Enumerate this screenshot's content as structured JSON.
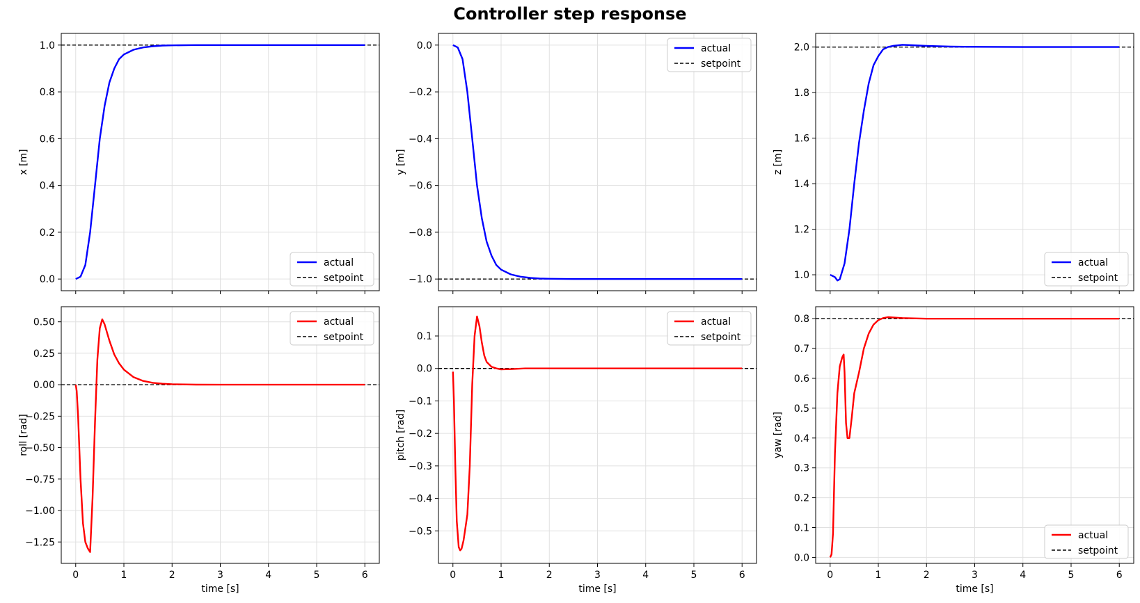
{
  "figure": {
    "title": "Controller step response"
  },
  "colors": {
    "translation": "#0000ff",
    "rotation": "#ff0000",
    "setpoint": "#000000",
    "grid": "#e0e0e0"
  },
  "chart_data": [
    {
      "type": "line",
      "id": "x",
      "xlabel": "",
      "ylabel": "x [m]",
      "xlim": [
        -0.3,
        6.3
      ],
      "ylim": [
        -0.05,
        1.05
      ],
      "xticks": [
        0,
        1,
        2,
        3,
        4,
        5,
        6
      ],
      "yticks": [
        0.0,
        0.2,
        0.4,
        0.6,
        0.8,
        1.0
      ],
      "ytick_decimals": 1,
      "show_xtick_labels": false,
      "grid": true,
      "legend": "lower-right",
      "setpoint": 1.0,
      "series": [
        {
          "name": "actual",
          "x": [
            0,
            0.1,
            0.2,
            0.3,
            0.4,
            0.5,
            0.6,
            0.7,
            0.8,
            0.9,
            1.0,
            1.2,
            1.4,
            1.6,
            1.8,
            2.0,
            2.5,
            3,
            4,
            5,
            6
          ],
          "y": [
            0,
            0.01,
            0.06,
            0.2,
            0.4,
            0.6,
            0.74,
            0.84,
            0.9,
            0.94,
            0.96,
            0.98,
            0.99,
            0.995,
            0.998,
            0.999,
            1,
            1,
            1,
            1,
            1
          ]
        }
      ]
    },
    {
      "type": "line",
      "id": "y",
      "xlabel": "",
      "ylabel": "y [m]",
      "xlim": [
        -0.3,
        6.3
      ],
      "ylim": [
        -1.05,
        0.05
      ],
      "xticks": [
        0,
        1,
        2,
        3,
        4,
        5,
        6
      ],
      "yticks": [
        -1.0,
        -0.8,
        -0.6,
        -0.4,
        -0.2,
        0.0
      ],
      "ytick_decimals": 1,
      "show_xtick_labels": false,
      "grid": true,
      "legend": "top-right",
      "setpoint": -1.0,
      "series": [
        {
          "name": "actual",
          "x": [
            0,
            0.1,
            0.2,
            0.3,
            0.4,
            0.5,
            0.6,
            0.7,
            0.8,
            0.9,
            1.0,
            1.2,
            1.4,
            1.6,
            1.8,
            2.0,
            2.5,
            3,
            4,
            5,
            6
          ],
          "y": [
            0,
            -0.01,
            -0.06,
            -0.2,
            -0.4,
            -0.6,
            -0.74,
            -0.84,
            -0.9,
            -0.94,
            -0.96,
            -0.98,
            -0.99,
            -0.995,
            -0.998,
            -0.999,
            -1,
            -1,
            -1,
            -1,
            -1
          ]
        }
      ]
    },
    {
      "type": "line",
      "id": "z",
      "xlabel": "",
      "ylabel": "z [m]",
      "xlim": [
        -0.3,
        6.3
      ],
      "ylim": [
        0.93,
        2.06
      ],
      "xticks": [
        0,
        1,
        2,
        3,
        4,
        5,
        6
      ],
      "yticks": [
        1.0,
        1.2,
        1.4,
        1.6,
        1.8,
        2.0
      ],
      "ytick_decimals": 1,
      "show_xtick_labels": false,
      "grid": true,
      "legend": "lower-right",
      "setpoint": 2.0,
      "series": [
        {
          "name": "actual",
          "x": [
            0,
            0.1,
            0.15,
            0.2,
            0.3,
            0.4,
            0.5,
            0.6,
            0.7,
            0.8,
            0.9,
            1.0,
            1.1,
            1.2,
            1.3,
            1.5,
            1.7,
            2.0,
            2.5,
            3,
            4,
            5,
            6
          ],
          "y": [
            1.0,
            0.99,
            0.975,
            0.98,
            1.05,
            1.2,
            1.4,
            1.58,
            1.72,
            1.84,
            1.92,
            1.96,
            1.99,
            2.0,
            2.005,
            2.01,
            2.008,
            2.005,
            2.002,
            2.001,
            2.0,
            2.0,
            2.0
          ]
        }
      ]
    },
    {
      "type": "line",
      "id": "roll",
      "xlabel": "time [s]",
      "ylabel": "roll [rad]",
      "xlim": [
        -0.3,
        6.3
      ],
      "ylim": [
        -1.42,
        0.62
      ],
      "xticks": [
        0,
        1,
        2,
        3,
        4,
        5,
        6
      ],
      "yticks": [
        -1.25,
        -1.0,
        -0.75,
        -0.5,
        -0.25,
        0.0,
        0.25,
        0.5
      ],
      "ytick_decimals": 2,
      "show_xtick_labels": true,
      "grid": true,
      "legend": "top-right",
      "setpoint": 0.0,
      "series": [
        {
          "name": "actual",
          "x": [
            0,
            0.02,
            0.05,
            0.1,
            0.15,
            0.2,
            0.25,
            0.3,
            0.35,
            0.4,
            0.45,
            0.5,
            0.55,
            0.6,
            0.7,
            0.8,
            0.9,
            1.0,
            1.2,
            1.4,
            1.6,
            1.8,
            2.0,
            2.5,
            3,
            4,
            5,
            6
          ],
          "y": [
            0,
            -0.05,
            -0.25,
            -0.75,
            -1.1,
            -1.25,
            -1.3,
            -1.33,
            -0.9,
            -0.3,
            0.2,
            0.45,
            0.52,
            0.48,
            0.35,
            0.24,
            0.17,
            0.12,
            0.06,
            0.03,
            0.015,
            0.008,
            0.004,
            0.001,
            0,
            0,
            0,
            0
          ]
        }
      ]
    },
    {
      "type": "line",
      "id": "pitch",
      "xlabel": "time [s]",
      "ylabel": "pitch [rad]",
      "xlim": [
        -0.3,
        6.3
      ],
      "ylim": [
        -0.6,
        0.19
      ],
      "xticks": [
        0,
        1,
        2,
        3,
        4,
        5,
        6
      ],
      "yticks": [
        -0.5,
        -0.4,
        -0.3,
        -0.2,
        -0.1,
        0.0,
        0.1
      ],
      "ytick_decimals": 1,
      "show_xtick_labels": true,
      "grid": true,
      "legend": "top-right",
      "setpoint": 0.0,
      "series": [
        {
          "name": "actual",
          "x": [
            0,
            0.02,
            0.05,
            0.08,
            0.12,
            0.15,
            0.18,
            0.22,
            0.25,
            0.3,
            0.35,
            0.4,
            0.45,
            0.5,
            0.55,
            0.6,
            0.65,
            0.7,
            0.8,
            0.9,
            1.0,
            1.2,
            1.5,
            2,
            3,
            4,
            5,
            6
          ],
          "y": [
            -0.01,
            -0.1,
            -0.3,
            -0.47,
            -0.55,
            -0.56,
            -0.555,
            -0.53,
            -0.5,
            -0.45,
            -0.3,
            -0.05,
            0.1,
            0.16,
            0.13,
            0.08,
            0.04,
            0.02,
            0.005,
            0,
            -0.003,
            -0.002,
            0,
            0,
            0,
            0,
            0,
            0
          ]
        }
      ]
    },
    {
      "type": "line",
      "id": "yaw",
      "xlabel": "time [s]",
      "ylabel": "yaw [rad]",
      "xlim": [
        -0.3,
        6.3
      ],
      "ylim": [
        -0.02,
        0.84
      ],
      "xticks": [
        0,
        1,
        2,
        3,
        4,
        5,
        6
      ],
      "yticks": [
        0.0,
        0.1,
        0.2,
        0.3,
        0.4,
        0.5,
        0.6,
        0.7,
        0.8
      ],
      "ytick_decimals": 1,
      "show_xtick_labels": true,
      "grid": true,
      "legend": "lower-right",
      "setpoint": 0.8,
      "series": [
        {
          "name": "actual",
          "x": [
            0,
            0.03,
            0.06,
            0.1,
            0.15,
            0.2,
            0.25,
            0.28,
            0.3,
            0.33,
            0.36,
            0.4,
            0.45,
            0.5,
            0.6,
            0.7,
            0.8,
            0.9,
            1.0,
            1.1,
            1.2,
            1.3,
            1.5,
            2,
            3,
            4,
            5,
            6
          ],
          "y": [
            0,
            0.01,
            0.08,
            0.35,
            0.55,
            0.64,
            0.67,
            0.68,
            0.62,
            0.45,
            0.4,
            0.4,
            0.47,
            0.55,
            0.62,
            0.7,
            0.75,
            0.78,
            0.795,
            0.802,
            0.805,
            0.804,
            0.802,
            0.8,
            0.8,
            0.8,
            0.8,
            0.8
          ]
        }
      ]
    }
  ]
}
